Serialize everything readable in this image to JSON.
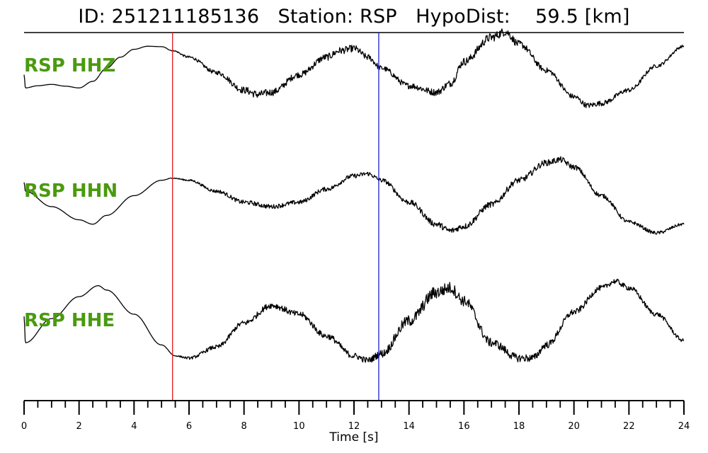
{
  "title": "ID: 251211185136   Station: RSP   HypoDist:    59.5 [km]",
  "colors": {
    "trace": "#000000",
    "label": "#4a9a0f",
    "p_pick": "#e8141c",
    "s_pick": "#1f1fd4",
    "axis": "#000000"
  },
  "chart_data": {
    "type": "line",
    "xlabel": "Time [s]",
    "xlim": [
      0,
      24
    ],
    "x_ticks": [
      "0",
      "2",
      "4",
      "6",
      "8",
      "10",
      "12",
      "14",
      "16",
      "18",
      "20",
      "22",
      "24"
    ],
    "minor_tick_step": 0.5,
    "vertical_markers": [
      {
        "color": "red",
        "x": 5.4
      },
      {
        "color": "blue",
        "x": 12.9
      }
    ],
    "series": [
      {
        "name": "RSP HHZ",
        "x": [
          0.0,
          0.05,
          0.5,
          1.0,
          1.5,
          2.0,
          2.5,
          3.0,
          3.5,
          4.0,
          4.5,
          5.0,
          5.4,
          6.0,
          7.0,
          8.0,
          8.5,
          9.0,
          10.0,
          11.0,
          11.5,
          12.0,
          12.5,
          13.0,
          14.0,
          15.0,
          15.5,
          16.0,
          17.0,
          17.5,
          18.0,
          19.0,
          20.0,
          20.5,
          21.0,
          22.0,
          23.0,
          24.0
        ],
        "values": [
          0.2,
          -0.1,
          -0.05,
          -0.02,
          -0.06,
          -0.1,
          0.05,
          0.35,
          0.6,
          0.78,
          0.85,
          0.84,
          0.75,
          0.6,
          0.25,
          -0.15,
          -0.25,
          -0.2,
          0.2,
          0.6,
          0.75,
          0.8,
          0.6,
          0.35,
          -0.05,
          -0.2,
          0.0,
          0.5,
          1.05,
          1.18,
          0.9,
          0.3,
          -0.3,
          -0.5,
          -0.45,
          -0.15,
          0.4,
          0.85
        ],
        "noise": [
          0.0,
          0.0,
          0.0,
          0.0,
          0.0,
          0.0,
          0.0,
          0.0,
          0.0,
          0.0,
          0.0,
          0.0,
          0.01,
          0.03,
          0.05,
          0.08,
          0.09,
          0.08,
          0.07,
          0.08,
          0.08,
          0.08,
          0.07,
          0.06,
          0.07,
          0.08,
          0.08,
          0.09,
          0.1,
          0.1,
          0.08,
          0.06,
          0.06,
          0.06,
          0.06,
          0.05,
          0.04,
          0.03
        ]
      },
      {
        "name": "RSP HHN",
        "x": [
          0.0,
          0.05,
          1.0,
          2.0,
          2.5,
          3.0,
          4.0,
          5.0,
          5.4,
          6.0,
          7.0,
          8.0,
          9.0,
          10.0,
          11.0,
          12.0,
          12.5,
          13.0,
          14.0,
          15.0,
          15.5,
          16.0,
          17.0,
          18.0,
          19.0,
          19.5,
          20.0,
          21.0,
          22.0,
          23.0,
          24.0
        ],
        "values": [
          0.6,
          0.4,
          0.05,
          -0.25,
          -0.35,
          -0.15,
          0.3,
          0.65,
          0.7,
          0.65,
          0.4,
          0.15,
          0.05,
          0.15,
          0.45,
          0.75,
          0.8,
          0.65,
          0.15,
          -0.35,
          -0.5,
          -0.4,
          0.1,
          0.65,
          1.05,
          1.12,
          0.95,
          0.3,
          -0.3,
          -0.55,
          -0.35
        ],
        "noise": [
          0.0,
          0.0,
          0.0,
          0.0,
          0.0,
          0.0,
          0.0,
          0.0,
          0.01,
          0.02,
          0.04,
          0.05,
          0.05,
          0.05,
          0.05,
          0.05,
          0.05,
          0.05,
          0.06,
          0.07,
          0.07,
          0.07,
          0.07,
          0.07,
          0.07,
          0.07,
          0.06,
          0.05,
          0.04,
          0.04,
          0.03
        ]
      },
      {
        "name": "RSP HHE",
        "x": [
          0.0,
          0.05,
          1.0,
          2.0,
          2.7,
          3.0,
          4.0,
          5.0,
          5.5,
          6.0,
          7.0,
          8.0,
          9.0,
          10.0,
          11.0,
          12.0,
          12.5,
          13.0,
          14.0,
          15.0,
          15.5,
          16.0,
          17.0,
          18.0,
          18.5,
          19.0,
          20.0,
          21.0,
          21.5,
          22.0,
          23.0,
          24.0
        ],
        "values": [
          0.5,
          -0.1,
          0.45,
          0.95,
          1.2,
          1.1,
          0.55,
          -0.15,
          -0.4,
          -0.45,
          -0.2,
          0.35,
          0.75,
          0.55,
          0.05,
          -0.4,
          -0.5,
          -0.35,
          0.4,
          1.05,
          1.15,
          0.85,
          -0.1,
          -0.45,
          -0.45,
          -0.15,
          0.6,
          1.15,
          1.3,
          1.15,
          0.55,
          -0.05
        ],
        "noise": [
          0.0,
          0.0,
          0.0,
          0.0,
          0.0,
          0.0,
          0.0,
          0.0,
          0.01,
          0.03,
          0.05,
          0.06,
          0.07,
          0.07,
          0.07,
          0.07,
          0.07,
          0.09,
          0.13,
          0.15,
          0.14,
          0.12,
          0.1,
          0.09,
          0.09,
          0.08,
          0.07,
          0.06,
          0.06,
          0.06,
          0.05,
          0.04
        ]
      }
    ]
  }
}
